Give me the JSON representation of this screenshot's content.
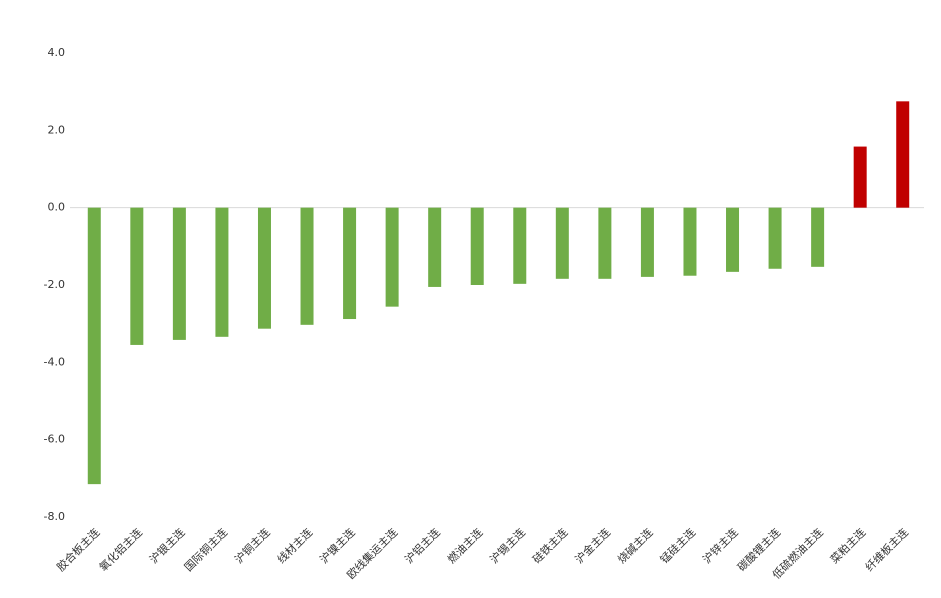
{
  "chart_data": {
    "type": "bar",
    "categories": [
      "胶合板主连",
      "氧化铝主连",
      "沪银主连",
      "国际铜主连",
      "沪铜主连",
      "线材主连",
      "沪镍主连",
      "欧线集运主连",
      "沪铝主连",
      "燃油主连",
      "沪锡主连",
      "硅铁主连",
      "沪金主连",
      "烧碱主连",
      "锰硅主连",
      "沪锌主连",
      "碳酸锂主连",
      "低硫燃油主连",
      "菜粕主连",
      "纤维板主连"
    ],
    "values": [
      -7.15,
      -3.55,
      -3.42,
      -3.34,
      -3.13,
      -3.03,
      -2.88,
      -2.56,
      -2.05,
      -2.0,
      -1.97,
      -1.84,
      -1.84,
      -1.79,
      -1.76,
      -1.66,
      -1.58,
      -1.53,
      1.58,
      2.75
    ],
    "colors": [
      "#70ad47",
      "#70ad47",
      "#70ad47",
      "#70ad47",
      "#70ad47",
      "#70ad47",
      "#70ad47",
      "#70ad47",
      "#70ad47",
      "#70ad47",
      "#70ad47",
      "#70ad47",
      "#70ad47",
      "#70ad47",
      "#70ad47",
      "#70ad47",
      "#70ad47",
      "#70ad47",
      "#c00000",
      "#c00000"
    ],
    "ylim": [
      -8,
      4
    ],
    "yticks": [
      {
        "value": -8,
        "label": "-8.0"
      },
      {
        "value": -6,
        "label": "-6.0"
      },
      {
        "value": -4,
        "label": "-4.0"
      },
      {
        "value": -2,
        "label": "-2.0"
      },
      {
        "value": 0,
        "label": "0.0"
      },
      {
        "value": 2,
        "label": "2.0"
      },
      {
        "value": 4,
        "label": "4.0"
      }
    ],
    "grid": false
  }
}
